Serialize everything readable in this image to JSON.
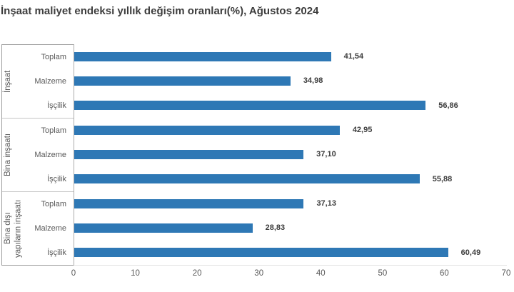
{
  "page": {
    "background": "#ffffff"
  },
  "chart_data": {
    "type": "bar",
    "orientation": "horizontal",
    "title": "İnşaat maliyet endeksi yıllık değişim oranları(%), Ağustos 2024",
    "xlabel": "",
    "ylabel": "",
    "xlim": [
      0,
      70
    ],
    "xticks": [
      0,
      10,
      20,
      30,
      40,
      50,
      60,
      70
    ],
    "grid": false,
    "legend": false,
    "bar_color": "#2E78B5",
    "decimal_style": "comma",
    "groups": [
      {
        "name": "İnşaat",
        "items": [
          {
            "label": "Toplam",
            "value": 41.54,
            "display": "41,54"
          },
          {
            "label": "Malzeme",
            "value": 34.98,
            "display": "34,98"
          },
          {
            "label": "İşçilik",
            "value": 56.86,
            "display": "56,86"
          }
        ]
      },
      {
        "name": "Bina inşaatı",
        "items": [
          {
            "label": "Toplam",
            "value": 42.95,
            "display": "42,95"
          },
          {
            "label": "Malzeme",
            "value": 37.1,
            "display": "37,10"
          },
          {
            "label": "İşçilik",
            "value": 55.88,
            "display": "55,88"
          }
        ]
      },
      {
        "name": "Bina dışı\nyapıların inşaatı",
        "items": [
          {
            "label": "Toplam",
            "value": 37.13,
            "display": "37,13"
          },
          {
            "label": "Malzeme",
            "value": 28.83,
            "display": "28,83"
          },
          {
            "label": "İşçilik",
            "value": 60.49,
            "display": "60,49"
          }
        ]
      }
    ]
  }
}
